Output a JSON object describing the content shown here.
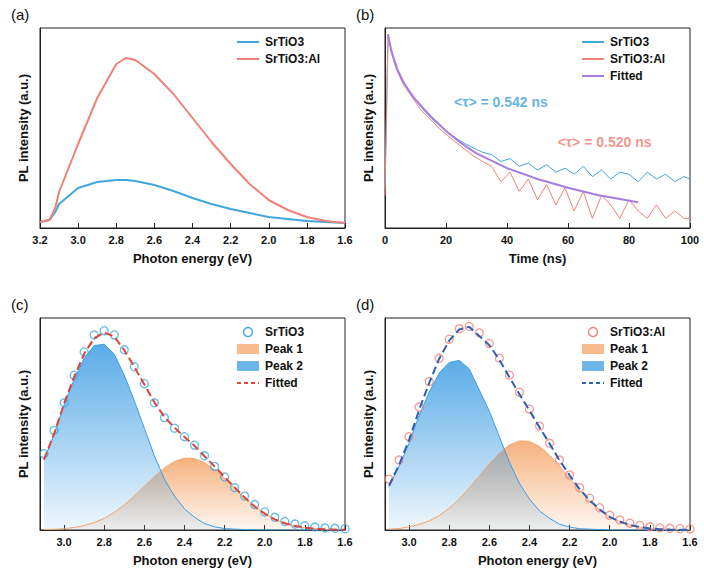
{
  "chart_data": [
    {
      "type": "line",
      "title": "(a)",
      "xlabel": "Photon energy (eV)",
      "ylabel": "PL intensity (a.u.)",
      "x": [
        3.2,
        3.15,
        3.12,
        3.1,
        3.0,
        2.9,
        2.8,
        2.75,
        2.7,
        2.6,
        2.5,
        2.4,
        2.3,
        2.2,
        2.1,
        2.0,
        1.9,
        1.8,
        1.7,
        1.6
      ],
      "series": [
        {
          "name": "SrTiO3",
          "color": "#3fa7dc",
          "values": [
            3,
            4,
            8,
            12,
            20,
            23,
            24,
            24,
            23.5,
            21.5,
            18.5,
            15,
            12,
            9.5,
            7.5,
            5.5,
            4.5,
            3.5,
            3,
            2.5
          ]
        },
        {
          "name": "SrTiO3:Al",
          "color": "#f08178",
          "values": [
            3,
            4,
            10,
            18,
            42,
            65,
            82,
            85,
            84,
            77,
            67,
            55,
            43,
            32,
            22,
            14,
            9,
            5.5,
            3.5,
            2.5
          ]
        }
      ],
      "xlim": [
        3.2,
        1.6
      ],
      "xticks": [
        3.2,
        {
          "value": 3,
          "label": "3.0"
        },
        2.8,
        2.6,
        2.4,
        2.2,
        {
          "value": 2,
          "label": "2.0"
        },
        1.8,
        1.6
      ],
      "ylim": [
        0,
        100
      ],
      "tick_labels": "x",
      "legend": "upper right",
      "grid": false
    },
    {
      "type": "line",
      "title": "(b)",
      "xlabel": "Time (ns)",
      "ylabel": "PL intensity (a.u.)",
      "x": [
        0,
        1,
        2,
        3,
        4,
        5,
        6,
        8,
        10,
        12,
        14,
        16,
        18,
        20,
        23,
        26,
        29,
        32,
        35,
        38,
        41,
        44,
        47,
        50,
        53,
        56,
        59,
        62,
        65,
        68,
        71,
        74,
        77,
        80,
        83,
        86,
        89,
        92,
        95,
        98,
        100
      ],
      "series": [
        {
          "name": "SrTiO3",
          "color": "#3fa7dc",
          "values": [
            0.01,
            1,
            0.62,
            0.45,
            0.35,
            0.29,
            0.24,
            0.18,
            0.14,
            0.11,
            0.09,
            0.075,
            0.064,
            0.055,
            0.045,
            0.038,
            0.033,
            0.029,
            0.027,
            0.022,
            0.024,
            0.019,
            0.021,
            0.017,
            0.02,
            0.016,
            0.018,
            0.015,
            0.019,
            0.014,
            0.017,
            0.013,
            0.016,
            0.015,
            0.012,
            0.016,
            0.013,
            0.015,
            0.012,
            0.014,
            0.013
          ]
        },
        {
          "name": "SrTiO3:Al",
          "color": "#f08178",
          "values": [
            0.008,
            1,
            0.6,
            0.43,
            0.33,
            0.27,
            0.22,
            0.17,
            0.13,
            0.1,
            0.085,
            0.07,
            0.058,
            0.05,
            0.04,
            0.032,
            0.026,
            0.022,
            0.019,
            0.012,
            0.016,
            0.009,
            0.013,
            0.007,
            0.011,
            0.006,
            0.01,
            0.005,
            0.009,
            0.004,
            0.008,
            0.006,
            0.004,
            0.007,
            0.005,
            0.004,
            0.006,
            0.004,
            0.005,
            0.004,
            0.004
          ]
        },
        {
          "name": "Fitted",
          "color": "#a67de0",
          "x": [
            1,
            2,
            4,
            6,
            8,
            10,
            15,
            20,
            25,
            30,
            40,
            50,
            60,
            70,
            83
          ],
          "values": [
            1,
            0.62,
            0.35,
            0.24,
            0.18,
            0.14,
            0.085,
            0.055,
            0.038,
            0.028,
            0.018,
            0.013,
            0.01,
            0.008,
            0.0065
          ]
        }
      ],
      "annotations": [
        {
          "text": "<τ> = 0.542 ns",
          "x": 38,
          "y": 0.13,
          "color": "#3aa0dc"
        },
        {
          "text": "<τ> = 0.520 ns",
          "x": 72,
          "y": 0.04,
          "color": "#f07a72"
        }
      ],
      "xlim": [
        0,
        100
      ],
      "xticks": [
        0,
        20,
        40,
        60,
        80,
        100
      ],
      "ylim": [
        0.003,
        1.2
      ],
      "log": "y",
      "tick_labels": "x",
      "legend": "upper right",
      "grid": false
    },
    {
      "type": "line",
      "title": "(c)",
      "xlabel": "Photon energy (eV)",
      "ylabel": "PL intensity (a.u.)",
      "x": [
        3.1,
        3.05,
        3.0,
        2.95,
        2.9,
        2.85,
        2.8,
        2.75,
        2.7,
        2.65,
        2.6,
        2.55,
        2.5,
        2.45,
        2.4,
        2.35,
        2.3,
        2.25,
        2.2,
        2.15,
        2.1,
        2.05,
        2.0,
        1.95,
        1.9,
        1.85,
        1.8,
        1.75,
        1.7,
        1.65,
        1.6
      ],
      "series": [
        {
          "name": "SrTiO3",
          "type": "scatter",
          "marker": "circle",
          "color": "#3fa7dc",
          "values": [
            0.36,
            0.47,
            0.6,
            0.73,
            0.84,
            0.92,
            0.94,
            0.92,
            0.85,
            0.77,
            0.69,
            0.6,
            0.53,
            0.48,
            0.44,
            0.4,
            0.35,
            0.3,
            0.25,
            0.2,
            0.16,
            0.12,
            0.085,
            0.06,
            0.04,
            0.028,
            0.02,
            0.014,
            0.01,
            0.008,
            0.006
          ]
        },
        {
          "name": "Peak 1",
          "type": "area",
          "color": "#f5a468",
          "values": [
            0.002,
            0.003,
            0.006,
            0.012,
            0.021,
            0.035,
            0.055,
            0.083,
            0.118,
            0.16,
            0.206,
            0.252,
            0.293,
            0.323,
            0.339,
            0.337,
            0.318,
            0.285,
            0.243,
            0.197,
            0.151,
            0.11,
            0.077,
            0.05,
            0.032,
            0.019,
            0.011,
            0.006,
            0.003,
            0.002,
            0.001
          ]
        },
        {
          "name": "Peak 2",
          "type": "area",
          "color": "#3d9de3",
          "values": [
            0.33,
            0.45,
            0.59,
            0.71,
            0.81,
            0.87,
            0.876,
            0.83,
            0.73,
            0.61,
            0.48,
            0.35,
            0.24,
            0.16,
            0.1,
            0.06,
            0.03,
            0.015,
            0.007,
            0.004,
            0.002,
            0.001,
            0,
            0,
            0,
            0,
            0,
            0,
            0,
            0,
            0
          ]
        },
        {
          "name": "Fitted",
          "type": "line",
          "line_style": "dashed",
          "color": "#d8453b",
          "values": [
            0.332,
            0.453,
            0.596,
            0.722,
            0.831,
            0.905,
            0.931,
            0.913,
            0.848,
            0.77,
            0.686,
            0.602,
            0.533,
            0.483,
            0.439,
            0.397,
            0.348,
            0.3,
            0.25,
            0.201,
            0.153,
            0.111,
            0.077,
            0.05,
            0.032,
            0.019,
            0.011,
            0.006,
            0.003,
            0.002,
            0.001
          ]
        }
      ],
      "xlim": [
        3.12,
        1.6
      ],
      "xticks": [
        {
          "value": 3,
          "label": "3.0"
        },
        2.8,
        2.6,
        2.4,
        2.2,
        {
          "value": 2,
          "label": "2.0"
        },
        1.8,
        1.6
      ],
      "ylim": [
        0,
        1
      ],
      "tick_labels": "x",
      "legend": "upper right",
      "grid": false
    },
    {
      "type": "line",
      "title": "(d)",
      "xlabel": "Photon energy (eV)",
      "ylabel": "PL intensity (a.u.)",
      "x": [
        3.1,
        3.05,
        3.0,
        2.95,
        2.9,
        2.85,
        2.8,
        2.75,
        2.7,
        2.65,
        2.6,
        2.55,
        2.5,
        2.45,
        2.4,
        2.35,
        2.3,
        2.25,
        2.2,
        2.15,
        2.1,
        2.05,
        2.0,
        1.95,
        1.9,
        1.85,
        1.8,
        1.75,
        1.7,
        1.65,
        1.6
      ],
      "series": [
        {
          "name": "SrTiO3:Al",
          "type": "scatter",
          "marker": "circle",
          "color": "#f08178",
          "values": [
            0.24,
            0.33,
            0.44,
            0.58,
            0.7,
            0.81,
            0.9,
            0.95,
            0.96,
            0.93,
            0.88,
            0.81,
            0.73,
            0.65,
            0.57,
            0.49,
            0.41,
            0.33,
            0.26,
            0.2,
            0.15,
            0.105,
            0.07,
            0.048,
            0.032,
            0.022,
            0.015,
            0.011,
            0.008,
            0.006,
            0.005
          ]
        },
        {
          "name": "Peak 1",
          "type": "area",
          "color": "#f5a468",
          "values": [
            0.004,
            0.007,
            0.015,
            0.026,
            0.043,
            0.068,
            0.103,
            0.146,
            0.198,
            0.255,
            0.312,
            0.363,
            0.401,
            0.42,
            0.418,
            0.394,
            0.353,
            0.301,
            0.244,
            0.187,
            0.136,
            0.095,
            0.062,
            0.04,
            0.024,
            0.014,
            0.007,
            0.004,
            0.002,
            0.001,
            0.001
          ]
        },
        {
          "name": "Peak 2",
          "type": "area",
          "color": "#3d9de3",
          "values": [
            0.205,
            0.3,
            0.41,
            0.54,
            0.65,
            0.74,
            0.79,
            0.8,
            0.76,
            0.66,
            0.56,
            0.44,
            0.32,
            0.22,
            0.146,
            0.09,
            0.055,
            0.027,
            0.014,
            0.006,
            0.004,
            0.002,
            0,
            0,
            0,
            0,
            0,
            0,
            0,
            0,
            0
          ]
        },
        {
          "name": "Fitted",
          "type": "line",
          "line_style": "dashed",
          "color": "#2f5fb3",
          "values": [
            0.209,
            0.307,
            0.425,
            0.566,
            0.693,
            0.808,
            0.893,
            0.946,
            0.958,
            0.915,
            0.872,
            0.803,
            0.721,
            0.64,
            0.564,
            0.484,
            0.408,
            0.328,
            0.258,
            0.193,
            0.14,
            0.097,
            0.062,
            0.04,
            0.024,
            0.014,
            0.007,
            0.004,
            0.002,
            0.001,
            0.001
          ]
        }
      ],
      "xlim": [
        3.12,
        1.6
      ],
      "xticks": [
        {
          "value": 3,
          "label": "3.0"
        },
        2.8,
        2.6,
        2.4,
        2.2,
        {
          "value": 2,
          "label": "2.0"
        },
        1.8,
        1.6
      ],
      "ylim": [
        0,
        1
      ],
      "tick_labels": "x",
      "legend": "upper right",
      "grid": false
    }
  ]
}
